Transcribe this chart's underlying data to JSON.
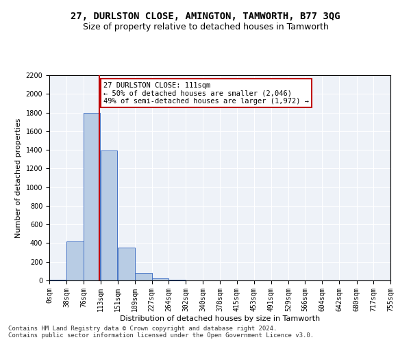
{
  "title": "27, DURLSTON CLOSE, AMINGTON, TAMWORTH, B77 3QG",
  "subtitle": "Size of property relative to detached houses in Tamworth",
  "xlabel": "Distribution of detached houses by size in Tamworth",
  "ylabel": "Number of detached properties",
  "footer_line1": "Contains HM Land Registry data © Crown copyright and database right 2024.",
  "footer_line2": "Contains public sector information licensed under the Open Government Licence v3.0.",
  "bar_edges": [
    0,
    38,
    76,
    113,
    151,
    189,
    227,
    264,
    302,
    340,
    378,
    415,
    453,
    491,
    529,
    566,
    604,
    642,
    680,
    717,
    755
  ],
  "bar_heights": [
    10,
    420,
    1800,
    1390,
    350,
    80,
    25,
    10,
    0,
    0,
    0,
    0,
    0,
    0,
    0,
    0,
    0,
    0,
    0,
    0
  ],
  "bar_color": "#b8cce4",
  "bar_edge_color": "#4472c4",
  "property_line_x": 111,
  "property_line_color": "#c00000",
  "annotation_text": "27 DURLSTON CLOSE: 111sqm\n← 50% of detached houses are smaller (2,046)\n49% of semi-detached houses are larger (1,972) →",
  "annotation_box_color": "#ffffff",
  "annotation_box_edge_color": "#c00000",
  "ylim": [
    0,
    2200
  ],
  "yticks": [
    0,
    200,
    400,
    600,
    800,
    1000,
    1200,
    1400,
    1600,
    1800,
    2000,
    2200
  ],
  "x_tick_labels": [
    "0sqm",
    "38sqm",
    "76sqm",
    "113sqm",
    "151sqm",
    "189sqm",
    "227sqm",
    "264sqm",
    "302sqm",
    "340sqm",
    "378sqm",
    "415sqm",
    "453sqm",
    "491sqm",
    "529sqm",
    "566sqm",
    "604sqm",
    "642sqm",
    "680sqm",
    "717sqm",
    "755sqm"
  ],
  "background_color": "#eef2f8",
  "grid_color": "#ffffff",
  "title_fontsize": 10,
  "subtitle_fontsize": 9,
  "label_fontsize": 8,
  "tick_fontsize": 7,
  "annotation_fontsize": 7.5,
  "footer_fontsize": 6.5
}
